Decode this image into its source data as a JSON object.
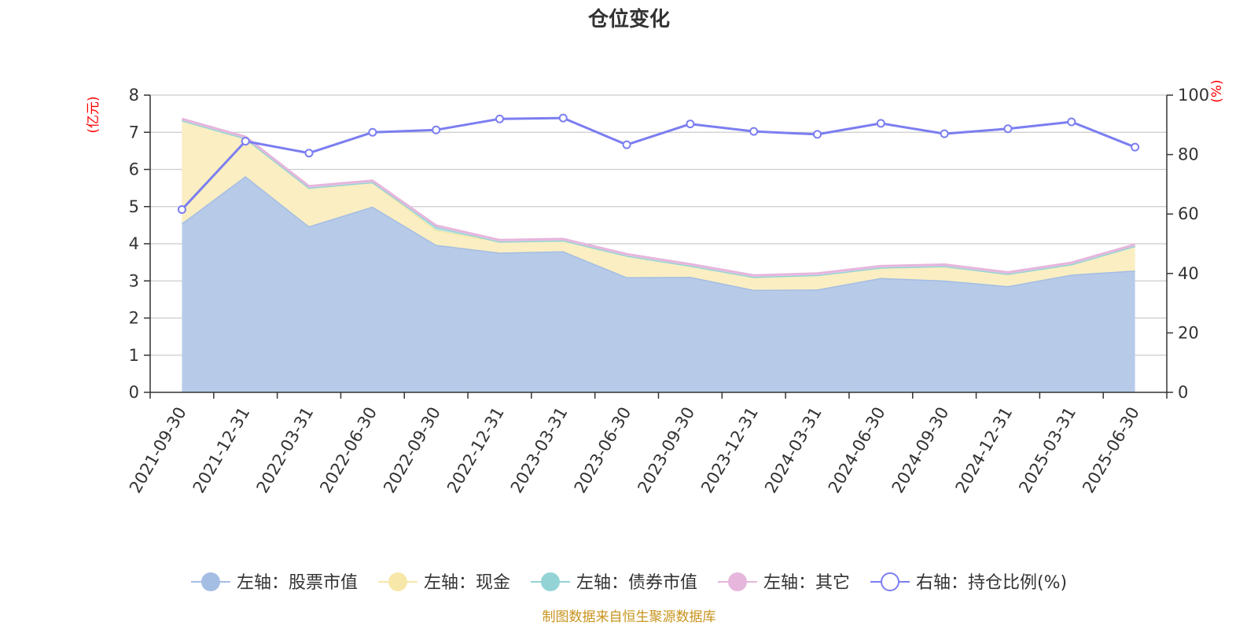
{
  "chart_data": {
    "type": "area",
    "title": "仓位变化",
    "categories": [
      "2021-09-30",
      "2021-12-31",
      "2022-03-31",
      "2022-06-30",
      "2022-09-30",
      "2022-12-31",
      "2023-03-31",
      "2023-06-30",
      "2023-09-30",
      "2023-12-31",
      "2024-03-31",
      "2024-06-30",
      "2024-09-30",
      "2024-12-31",
      "2025-03-31",
      "2025-06-30"
    ],
    "left_axis": {
      "unit": "(亿元)",
      "ylim": [
        0,
        8
      ],
      "ticks": [
        "0",
        "1",
        "2",
        "3",
        "4",
        "5",
        "6",
        "7",
        "8"
      ]
    },
    "right_axis": {
      "unit": "(%)",
      "ylim": [
        0,
        100
      ],
      "ticks": [
        "0",
        "20",
        "40",
        "60",
        "80",
        "100"
      ]
    },
    "series": [
      {
        "name": "左轴：股票市值",
        "axis": "left",
        "stacked": true,
        "color": "#a4bde3",
        "fill": "#b7cbe9",
        "values": [
          4.55,
          5.82,
          4.47,
          5.0,
          3.97,
          3.76,
          3.8,
          3.1,
          3.11,
          2.76,
          2.77,
          3.08,
          3.01,
          2.86,
          3.17,
          3.28
        ]
      },
      {
        "name": "左轴：现金",
        "axis": "left",
        "stacked": true,
        "color": "#f7e7a8",
        "fill": "#faeec2",
        "values": [
          2.77,
          1.02,
          1.04,
          0.66,
          0.4,
          0.3,
          0.29,
          0.58,
          0.3,
          0.35,
          0.39,
          0.28,
          0.39,
          0.33,
          0.28,
          0.66
        ]
      },
      {
        "name": "左轴：债券市值",
        "axis": "left",
        "stacked": true,
        "color": "#93d3d6",
        "fill": "#bfe5e3",
        "values": [
          0,
          0,
          0,
          0,
          0.08,
          0,
          0,
          0,
          0,
          0,
          0,
          0,
          0,
          0,
          0,
          0
        ]
      },
      {
        "name": "左轴：其它",
        "axis": "left",
        "stacked": true,
        "color": "#e6b6dc",
        "fill": "#f1d6ec",
        "values": [
          0.04,
          0.04,
          0.04,
          0.04,
          0.04,
          0.04,
          0.04,
          0.04,
          0.04,
          0.04,
          0.04,
          0.04,
          0.04,
          0.04,
          0.04,
          0.04
        ]
      },
      {
        "name": "右轴：持仓比例(%)",
        "axis": "right",
        "type": "line",
        "color": "#7b7ef0",
        "values": [
          61.5,
          84.5,
          80.5,
          87.5,
          88.3,
          92.0,
          92.3,
          83.3,
          90.3,
          87.8,
          86.8,
          90.5,
          87.0,
          88.7,
          91.0,
          82.5
        ]
      }
    ],
    "legend_position": "bottom-center",
    "grid": true
  },
  "source": "制图数据来自恒生聚源数据库",
  "colors": {
    "grid": "#cccccc",
    "axis": "#333333",
    "unit": "#ff0000",
    "source": "#c8941e"
  }
}
